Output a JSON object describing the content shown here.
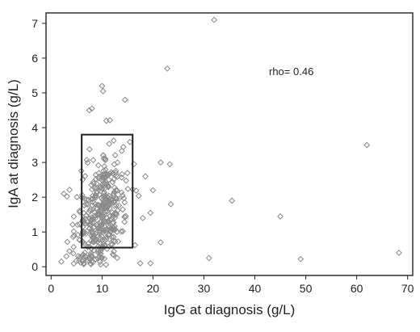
{
  "chart_data": {
    "type": "scatter",
    "title": "",
    "xlabel": "IgG at diagnosis (g/L)",
    "ylabel": "IgA at diagnosis (g/L)",
    "xlim": [
      -1,
      71
    ],
    "ylim": [
      -0.25,
      7.3
    ],
    "xticks": [
      "0",
      "10",
      "20",
      "30",
      "40",
      "50",
      "60",
      "70"
    ],
    "yticks": [
      "0",
      "1",
      "2",
      "3",
      "4",
      "5",
      "6",
      "7"
    ],
    "grid": false,
    "annotation": "rho= 0.46",
    "reference_box": {
      "x": [
        6,
        16
      ],
      "y": [
        0.55,
        3.8
      ]
    },
    "series": [
      {
        "marker": "open-diamond",
        "color": "#8a8a8a",
        "outliers": [
          [
            32,
            7.1
          ],
          [
            22.8,
            5.7
          ],
          [
            62,
            3.5
          ],
          [
            68.3,
            0.4
          ],
          [
            35.5,
            1.9
          ],
          [
            45,
            1.45
          ],
          [
            49,
            0.22
          ],
          [
            31,
            0.25
          ],
          [
            23.5,
            1.8
          ],
          [
            21.5,
            0.7
          ],
          [
            19.5,
            0.1
          ],
          [
            17.5,
            0.1
          ],
          [
            23.3,
            2.95
          ],
          [
            21.5,
            3.0
          ],
          [
            20,
            2.2
          ],
          [
            18,
            1.4
          ],
          [
            19.5,
            1.55
          ],
          [
            18.5,
            2.6
          ],
          [
            10,
            5.2
          ],
          [
            10.2,
            5.05
          ],
          [
            14.5,
            4.8
          ],
          [
            8,
            4.55
          ],
          [
            7.5,
            4.5
          ],
          [
            2.5,
            2.1
          ],
          [
            2,
            0.15
          ],
          [
            3,
            0.3
          ],
          [
            4.5,
            0.9
          ]
        ],
        "cluster_summary": {
          "count": 400,
          "x_center": 10,
          "y_center": 1.8
        }
      }
    ]
  }
}
